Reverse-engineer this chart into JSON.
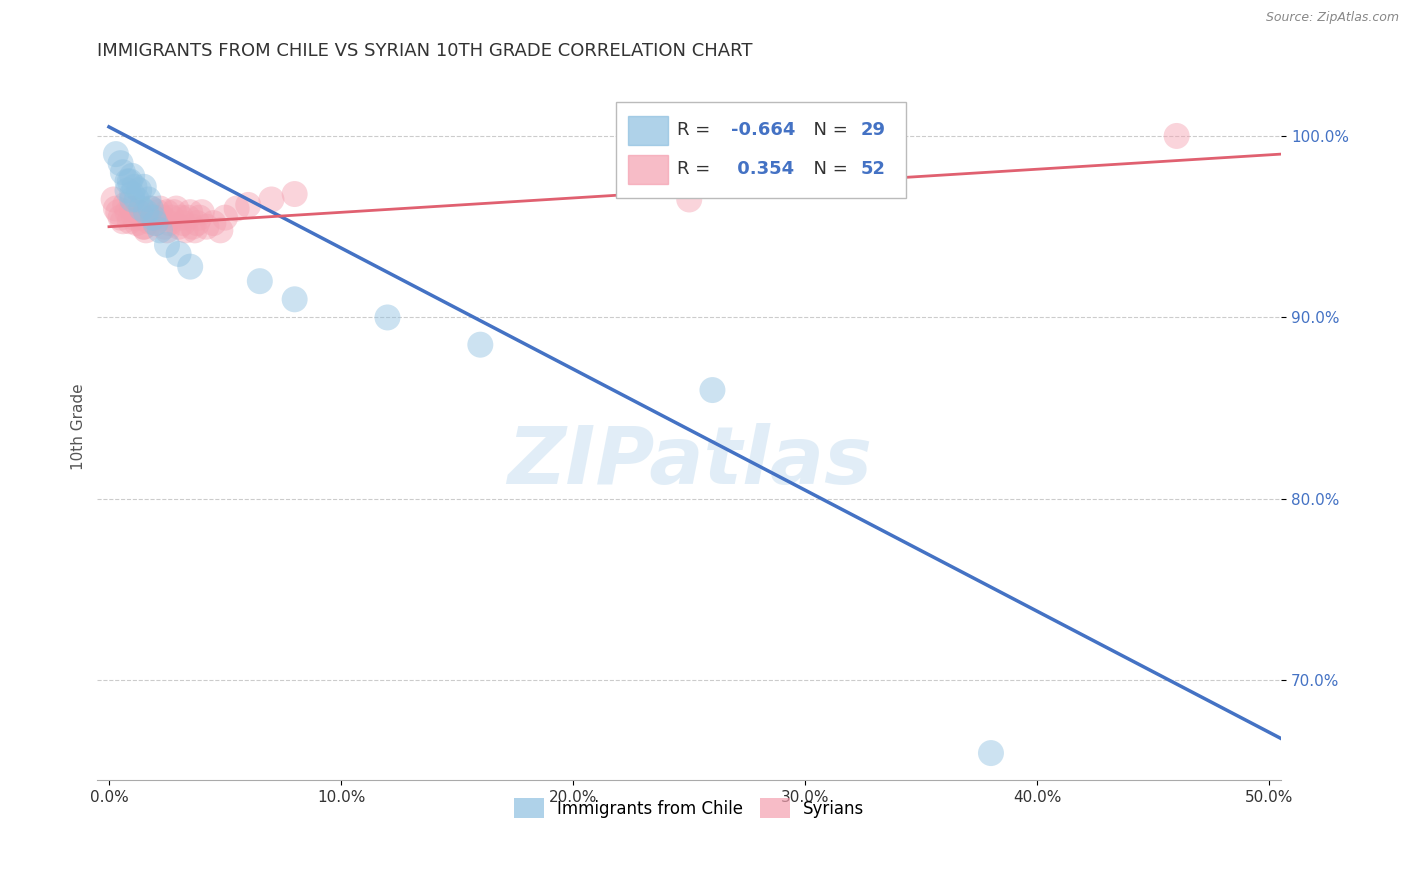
{
  "title": "IMMIGRANTS FROM CHILE VS SYRIAN 10TH GRADE CORRELATION CHART",
  "source": "Source: ZipAtlas.com",
  "xlabel_ticks": [
    "0.0%",
    "",
    "",
    "",
    "",
    "",
    "",
    "",
    "",
    "",
    "10.0%",
    "",
    "",
    "",
    "",
    "",
    "",
    "",
    "",
    "",
    "20.0%",
    "",
    "",
    "",
    "",
    "",
    "",
    "",
    "",
    "",
    "30.0%",
    "",
    "",
    "",
    "",
    "",
    "",
    "",
    "",
    "",
    "40.0%",
    "",
    "",
    "",
    "",
    "",
    "",
    "",
    "",
    "",
    "50.0%"
  ],
  "xlabel_vals": [
    0.0,
    0.5
  ],
  "ylabel": "10th Grade",
  "ylabel_ticks_labels": [
    "100.0%",
    "90.0%",
    "80.0%",
    "70.0%"
  ],
  "ylabel_ticks_vals": [
    1.0,
    0.9,
    0.8,
    0.7
  ],
  "xlim": [
    -0.005,
    0.505
  ],
  "ylim": [
    0.645,
    1.035
  ],
  "chile_R": -0.664,
  "chile_N": 29,
  "syrian_R": 0.354,
  "syrian_N": 52,
  "chile_color": "#8ec0e0",
  "syrian_color": "#f4a0b0",
  "chile_line_color": "#4472c4",
  "syrian_line_color": "#e06070",
  "legend_labels": [
    "Immigrants from Chile",
    "Syrians"
  ],
  "watermark": "ZIPatlas",
  "chile_scatter_x": [
    0.003,
    0.005,
    0.006,
    0.008,
    0.008,
    0.009,
    0.01,
    0.01,
    0.011,
    0.012,
    0.013,
    0.014,
    0.015,
    0.016,
    0.017,
    0.018,
    0.019,
    0.02,
    0.022,
    0.025,
    0.03,
    0.035,
    0.065,
    0.08,
    0.12,
    0.16,
    0.26,
    0.01,
    0.38
  ],
  "chile_scatter_y": [
    0.99,
    0.985,
    0.98,
    0.975,
    0.97,
    0.975,
    0.965,
    0.968,
    0.972,
    0.965,
    0.97,
    0.96,
    0.972,
    0.958,
    0.965,
    0.96,
    0.955,
    0.952,
    0.948,
    0.94,
    0.935,
    0.928,
    0.92,
    0.91,
    0.9,
    0.885,
    0.86,
    0.978,
    0.66
  ],
  "syrian_scatter_x": [
    0.002,
    0.003,
    0.004,
    0.005,
    0.006,
    0.007,
    0.008,
    0.009,
    0.01,
    0.011,
    0.012,
    0.013,
    0.014,
    0.015,
    0.016,
    0.017,
    0.018,
    0.019,
    0.02,
    0.021,
    0.022,
    0.023,
    0.024,
    0.025,
    0.026,
    0.027,
    0.028,
    0.029,
    0.03,
    0.031,
    0.032,
    0.033,
    0.034,
    0.035,
    0.036,
    0.037,
    0.038,
    0.039,
    0.04,
    0.042,
    0.045,
    0.048,
    0.05,
    0.055,
    0.06,
    0.07,
    0.08,
    0.25,
    0.015,
    0.02,
    0.025,
    0.46
  ],
  "syrian_scatter_y": [
    0.965,
    0.96,
    0.958,
    0.955,
    0.953,
    0.962,
    0.958,
    0.953,
    0.96,
    0.955,
    0.952,
    0.958,
    0.955,
    0.95,
    0.948,
    0.953,
    0.96,
    0.955,
    0.952,
    0.958,
    0.96,
    0.955,
    0.95,
    0.948,
    0.952,
    0.955,
    0.958,
    0.96,
    0.95,
    0.955,
    0.952,
    0.948,
    0.955,
    0.958,
    0.95,
    0.948,
    0.952,
    0.955,
    0.958,
    0.95,
    0.952,
    0.948,
    0.955,
    0.96,
    0.962,
    0.965,
    0.968,
    0.965,
    0.95,
    0.955,
    0.958,
    1.0
  ],
  "grid_color": "#cccccc",
  "grid_style": "--",
  "background": "#ffffff",
  "chile_line_x": [
    0.0,
    0.505
  ],
  "chile_line_y": [
    1.005,
    0.668
  ],
  "syrian_line_x": [
    0.0,
    0.505
  ],
  "syrian_line_y": [
    0.95,
    0.99
  ]
}
